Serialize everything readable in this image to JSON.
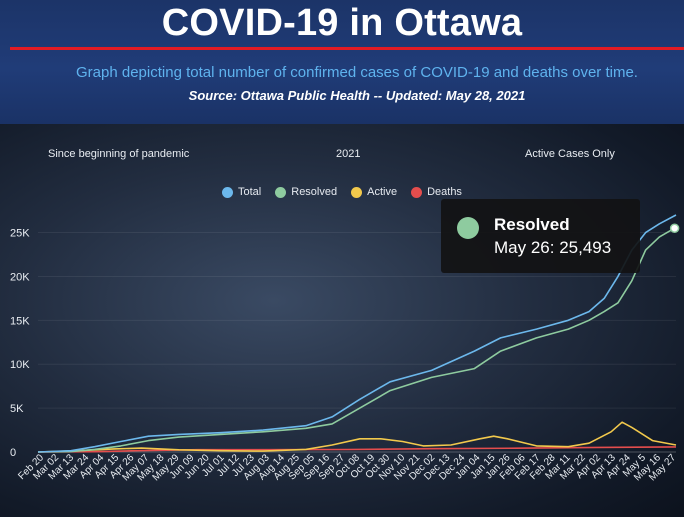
{
  "header": {
    "title": "COVID-19 in Ottawa",
    "subtitle": "Graph depicting total number of confirmed cases of COVID-19 and deaths over time.",
    "source": "Source:  Ottawa Public Health -- Updated:  May 28, 2021"
  },
  "tabs": [
    "Since beginning of pandemic",
    "2021",
    "Active Cases Only"
  ],
  "tooltip": {
    "series": "Resolved",
    "value_text": "May 26: 25,493"
  },
  "colors": {
    "total": "#6cb8ec",
    "resolved": "#8ecb9f",
    "active": "#f2c94c",
    "deaths": "#e44d4d",
    "title_rule": "#e31b23"
  },
  "chart_data": {
    "type": "line",
    "title": "",
    "xlabel": "",
    "ylabel": "",
    "ylim": [
      0,
      27000
    ],
    "yticks": [
      {
        "value": 0,
        "label": "0"
      },
      {
        "value": 5000,
        "label": "5K"
      },
      {
        "value": 10000,
        "label": "10K"
      },
      {
        "value": 15000,
        "label": "15K"
      },
      {
        "value": 20000,
        "label": "20K"
      },
      {
        "value": 25000,
        "label": "25K"
      }
    ],
    "x_tick_labels": [
      "Feb 20",
      "Mar 02",
      "Mar 13",
      "Mar 24",
      "Apr 04",
      "Apr 15",
      "Apr 26",
      "May 07",
      "May 18",
      "May 29",
      "Jun 09",
      "Jun 20",
      "Jul 01",
      "Jul 12",
      "Jul 23",
      "Aug 03",
      "Aug 14",
      "Aug 25",
      "Sep 05",
      "Sep 16",
      "Sep 27",
      "Oct 08",
      "Oct 19",
      "Oct 30",
      "Nov 10",
      "Nov 21",
      "Dec 02",
      "Dec 13",
      "Dec 24",
      "Jan 04",
      "Jan 15",
      "Jan 26",
      "Feb 06",
      "Feb 17",
      "Feb 28",
      "Mar 11",
      "Mar 22",
      "Apr 02",
      "Apr 13",
      "Apr 24",
      "May 5",
      "May 16",
      "May 27"
    ],
    "legend_position": "top",
    "series": [
      {
        "name": "Total",
        "color": "#6cb8ec",
        "x": [
          "2020-02-20",
          "2020-03-15",
          "2020-04-01",
          "2020-04-20",
          "2020-05-10",
          "2020-06-01",
          "2020-07-01",
          "2020-08-01",
          "2020-09-01",
          "2020-09-20",
          "2020-10-10",
          "2020-11-01",
          "2020-12-01",
          "2021-01-01",
          "2021-01-20",
          "2021-02-15",
          "2021-03-10",
          "2021-03-25",
          "2021-04-05",
          "2021-04-15",
          "2021-04-25",
          "2021-05-05",
          "2021-05-15",
          "2021-05-27"
        ],
        "values": [
          0,
          150,
          600,
          1200,
          1800,
          2000,
          2200,
          2500,
          3000,
          4000,
          6000,
          8000,
          9300,
          11500,
          13000,
          14000,
          15000,
          16000,
          17500,
          20000,
          23000,
          25000,
          26000,
          27000
        ]
      },
      {
        "name": "Resolved",
        "color": "#8ecb9f",
        "x": [
          "2020-02-20",
          "2020-03-15",
          "2020-04-01",
          "2020-04-20",
          "2020-05-10",
          "2020-06-01",
          "2020-07-01",
          "2020-08-01",
          "2020-09-01",
          "2020-09-20",
          "2020-10-10",
          "2020-11-01",
          "2020-12-01",
          "2021-01-01",
          "2021-01-20",
          "2021-02-15",
          "2021-03-10",
          "2021-03-25",
          "2021-04-05",
          "2021-04-15",
          "2021-04-25",
          "2021-05-05",
          "2021-05-15",
          "2021-05-26"
        ],
        "values": [
          0,
          50,
          300,
          700,
          1300,
          1700,
          2000,
          2300,
          2700,
          3200,
          5000,
          7000,
          8500,
          9500,
          11500,
          13000,
          14000,
          15000,
          16000,
          17000,
          19500,
          23000,
          24500,
          25493
        ]
      },
      {
        "name": "Active",
        "color": "#f2c94c",
        "x": [
          "2020-02-20",
          "2020-03-20",
          "2020-04-15",
          "2020-05-05",
          "2020-06-01",
          "2020-07-01",
          "2020-08-01",
          "2020-09-01",
          "2020-09-20",
          "2020-10-10",
          "2020-10-25",
          "2020-11-10",
          "2020-11-25",
          "2020-12-15",
          "2021-01-05",
          "2021-01-15",
          "2021-01-25",
          "2021-02-15",
          "2021-03-10",
          "2021-03-25",
          "2021-04-10",
          "2021-04-18",
          "2021-04-25",
          "2021-05-10",
          "2021-05-27"
        ],
        "values": [
          0,
          150,
          350,
          450,
          250,
          150,
          100,
          300,
          800,
          1500,
          1500,
          1200,
          700,
          800,
          1500,
          1800,
          1500,
          700,
          600,
          1000,
          2300,
          3400,
          2800,
          1300,
          800
        ]
      },
      {
        "name": "Deaths",
        "color": "#e44d4d",
        "x": [
          "2020-02-20",
          "2020-04-01",
          "2020-05-01",
          "2020-06-15",
          "2020-10-01",
          "2020-12-01",
          "2021-02-01",
          "2021-04-01",
          "2021-05-27"
        ],
        "values": [
          0,
          30,
          150,
          260,
          290,
          380,
          430,
          520,
          580
        ]
      }
    ]
  }
}
